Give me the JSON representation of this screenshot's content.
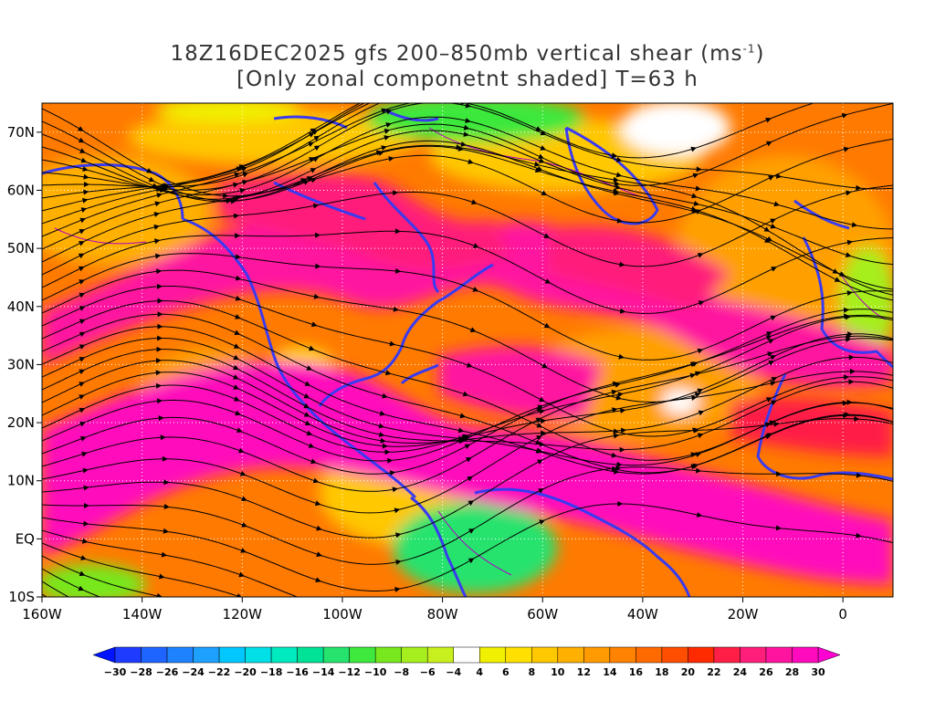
{
  "title": {
    "line1_prefix": "18Z16DEC2025 gfs 200–850mb vertical shear (ms",
    "line1_sup": "-1",
    "line1_suffix": ")",
    "line2": "[Only zonal componetnt shaded] T=63 h"
  },
  "map": {
    "lon_min": -160,
    "lon_max": 10,
    "lat_min": -10,
    "lat_max": 75,
    "lon_ticks": [
      {
        "value": -160,
        "label": "160W"
      },
      {
        "value": -140,
        "label": "140W"
      },
      {
        "value": -120,
        "label": "120W"
      },
      {
        "value": -100,
        "label": "100W"
      },
      {
        "value": -80,
        "label": "80W"
      },
      {
        "value": -60,
        "label": "60W"
      },
      {
        "value": -40,
        "label": "40W"
      },
      {
        "value": -20,
        "label": "20W"
      },
      {
        "value": 0,
        "label": "0"
      }
    ],
    "lat_ticks": [
      {
        "value": -10,
        "label": "10S"
      },
      {
        "value": 0,
        "label": "EQ"
      },
      {
        "value": 10,
        "label": "10N"
      },
      {
        "value": 20,
        "label": "20N"
      },
      {
        "value": 30,
        "label": "30N"
      },
      {
        "value": 40,
        "label": "40N"
      },
      {
        "value": 50,
        "label": "50N"
      },
      {
        "value": 60,
        "label": "60N"
      },
      {
        "value": 70,
        "label": "70N"
      }
    ],
    "coastline_color": "#3a3af0",
    "streamline_color": "#000000"
  },
  "colorbar": {
    "levels": [
      -30,
      -28,
      -26,
      -24,
      -22,
      -20,
      -18,
      -16,
      -14,
      -12,
      -10,
      -8,
      -6,
      -4,
      4,
      6,
      8,
      10,
      12,
      14,
      16,
      18,
      20,
      22,
      24,
      26,
      28,
      30
    ],
    "colors": [
      "#1e3cff",
      "#1e64ff",
      "#1e82ff",
      "#1ea0ff",
      "#00c8ff",
      "#00e0e6",
      "#00eac0",
      "#00e396",
      "#26e36e",
      "#3ee83c",
      "#78e81e",
      "#a6ee1e",
      "#c8f01e",
      "#ffffff",
      "#f0f000",
      "#ffe000",
      "#ffc800",
      "#ffb000",
      "#ff9a00",
      "#ff8200",
      "#ff6a00",
      "#ff4e00",
      "#ff2a00",
      "#ff1e46",
      "#ff1e7a",
      "#ff14a0",
      "#ff0abc"
    ],
    "under_color": "#0014ff",
    "over_color": "#ff00d2"
  }
}
